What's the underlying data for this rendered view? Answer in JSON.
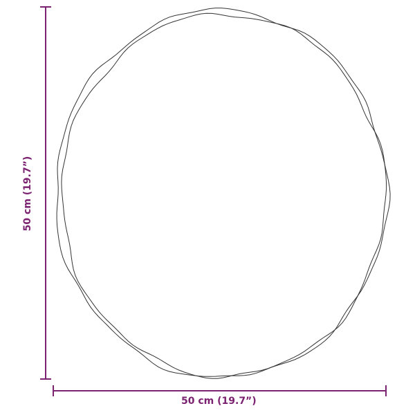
{
  "dimensions": {
    "width_label": "50 cm (19.7”)",
    "height_label": "50 cm (19.7”)"
  },
  "colors": {
    "dimension_line": "#7b2270",
    "outline": "#333333"
  },
  "shape": "round-mirror-outline"
}
